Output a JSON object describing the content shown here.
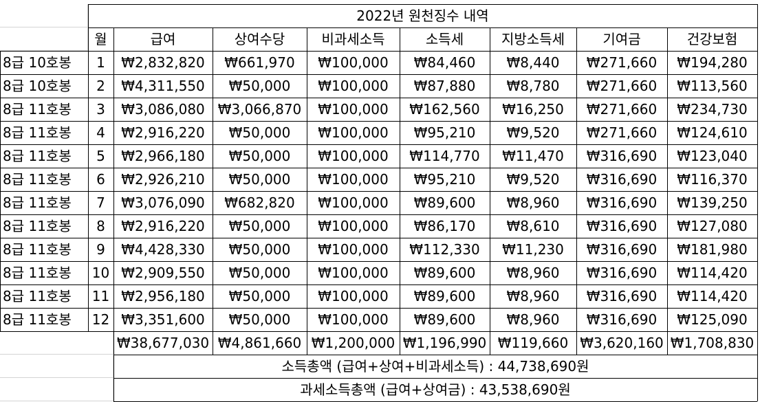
{
  "title": "2022년 원천징수 내역",
  "headers": [
    "월",
    "급여",
    "상여수당",
    "비과세소득",
    "소득세",
    "지방소득세",
    "기여금",
    "건강보험"
  ],
  "rows": [
    {
      "grade": "8급 10호봉",
      "month": "1",
      "values": [
        "₩2,832,820",
        "₩661,970",
        "₩100,000",
        "₩84,460",
        "₩8,440",
        "₩271,660",
        "₩194,280"
      ]
    },
    {
      "grade": "8급 10호봉",
      "month": "2",
      "values": [
        "₩4,311,550",
        "₩50,000",
        "₩100,000",
        "₩87,880",
        "₩8,780",
        "₩271,660",
        "₩113,560"
      ]
    },
    {
      "grade": "8급 11호봉",
      "month": "3",
      "values": [
        "₩3,086,080",
        "₩3,066,870",
        "₩100,000",
        "₩162,560",
        "₩16,250",
        "₩271,660",
        "₩234,730"
      ]
    },
    {
      "grade": "8급 11호봉",
      "month": "4",
      "values": [
        "₩2,916,220",
        "₩50,000",
        "₩100,000",
        "₩95,210",
        "₩9,520",
        "₩271,660",
        "₩124,610"
      ]
    },
    {
      "grade": "8급 11호봉",
      "month": "5",
      "values": [
        "₩2,966,180",
        "₩50,000",
        "₩100,000",
        "₩114,770",
        "₩11,470",
        "₩316,690",
        "₩123,040"
      ]
    },
    {
      "grade": "8급 11호봉",
      "month": "6",
      "values": [
        "₩2,926,210",
        "₩50,000",
        "₩100,000",
        "₩95,210",
        "₩9,520",
        "₩316,690",
        "₩116,370"
      ]
    },
    {
      "grade": "8급 11호봉",
      "month": "7",
      "values": [
        "₩3,076,090",
        "₩682,820",
        "₩100,000",
        "₩89,600",
        "₩8,960",
        "₩316,690",
        "₩139,250"
      ]
    },
    {
      "grade": "8급 11호봉",
      "month": "8",
      "values": [
        "₩2,916,220",
        "₩50,000",
        "₩100,000",
        "₩86,170",
        "₩8,610",
        "₩316,690",
        "₩127,080"
      ]
    },
    {
      "grade": "8급 11호봉",
      "month": "9",
      "values": [
        "₩4,428,330",
        "₩50,000",
        "₩100,000",
        "₩112,330",
        "₩11,230",
        "₩316,690",
        "₩181,980"
      ]
    },
    {
      "grade": "8급 11호봉",
      "month": "10",
      "values": [
        "₩2,909,550",
        "₩50,000",
        "₩100,000",
        "₩89,600",
        "₩8,960",
        "₩316,690",
        "₩114,420"
      ]
    },
    {
      "grade": "8급 11호봉",
      "month": "11",
      "values": [
        "₩2,956,180",
        "₩50,000",
        "₩100,000",
        "₩89,600",
        "₩8,960",
        "₩316,690",
        "₩114,420"
      ]
    },
    {
      "grade": "8급 11호봉",
      "month": "12",
      "values": [
        "₩3,351,600",
        "₩50,000",
        "₩100,000",
        "₩89,600",
        "₩8,960",
        "₩316,690",
        "₩125,090"
      ]
    }
  ],
  "totals": [
    "₩38,677,030",
    "₩4,861,660",
    "₩1,200,000",
    "₩1,196,990",
    "₩119,660",
    "₩3,620,160",
    "₩1,708,830"
  ],
  "summary": {
    "income_total": "소득총액 (급여+상여+비과세소득) : 44,738,690원",
    "taxable_total": "과세소득총액 (급여+상여금) : 43,538,690원"
  }
}
